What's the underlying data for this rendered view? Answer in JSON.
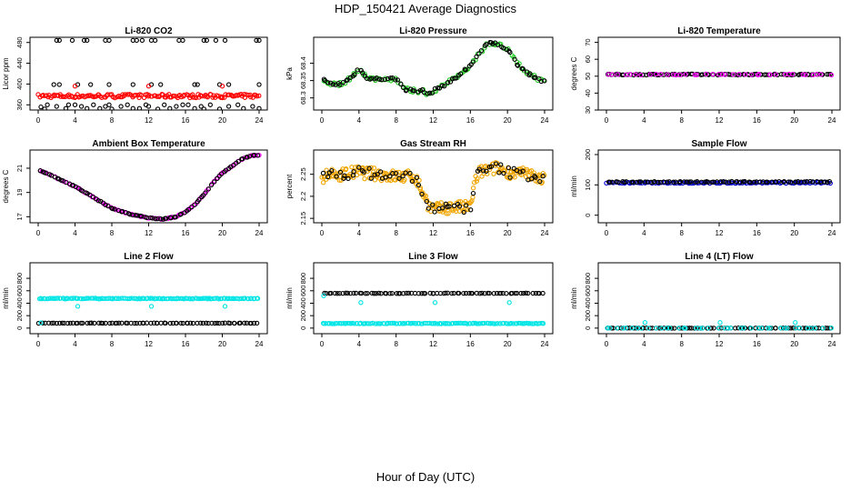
{
  "title": "HDP_150421  Average Diagnostics",
  "xlabel": "Hour of Day (UTC)",
  "colors": {
    "black": "#000000",
    "red": "#ff0000",
    "green": "#22cc22",
    "magenta": "#ff00ff",
    "orange": "#f0a500",
    "blue": "#0000cc",
    "cyan": "#00e5e5"
  },
  "chart_data": [
    {
      "type": "scatter",
      "title": "Li-820 CO2",
      "ylabel": "Licor ppm",
      "xlim": [
        0,
        24
      ],
      "xticks": [
        0,
        4,
        8,
        12,
        16,
        20,
        24
      ],
      "ylim": [
        350,
        490
      ],
      "yticks": [
        360,
        400,
        440,
        480
      ],
      "series": [
        {
          "name": "red",
          "color": "red",
          "style": "band",
          "y": 377,
          "spread": 3.5,
          "n": 150
        },
        {
          "name": "black-top",
          "color": "black",
          "x": [
            2,
            2.3,
            3.7,
            5,
            5.3,
            7.3,
            7.7,
            10.3,
            10.7,
            11.3,
            12.3,
            12.7,
            15.3,
            15.7,
            18,
            18.3,
            19.3,
            20.3,
            23.7,
            24
          ],
          "y": [
            484,
            484,
            484,
            484,
            484,
            484,
            484,
            484,
            484,
            484,
            484,
            484,
            484,
            484,
            484,
            484,
            484,
            484,
            484,
            484
          ]
        },
        {
          "name": "black-mid",
          "color": "black",
          "x": [
            1.7,
            2.3,
            4.3,
            5.7,
            7.7,
            10.3,
            12.3,
            13.3,
            17,
            17.3,
            19.7,
            20.7,
            24
          ],
          "y": [
            399,
            399,
            399,
            399,
            399,
            399,
            399,
            399,
            399,
            399,
            399,
            399,
            399
          ]
        },
        {
          "name": "black-low",
          "color": "black",
          "x": [
            0.3,
            0.7,
            1,
            2,
            3,
            3.3,
            4,
            4.7,
            5.3,
            6,
            6.7,
            7.3,
            7.7,
            8,
            9,
            9.7,
            10.3,
            11,
            11.7,
            12,
            13,
            13.7,
            14.3,
            15,
            15.7,
            16.3,
            17,
            17.7,
            18,
            18.7,
            19.7,
            20.7,
            21.7,
            22.3,
            23.3,
            24
          ],
          "y": [
            356,
            352,
            360,
            357,
            353,
            360,
            360,
            357,
            353,
            360,
            353,
            357,
            360,
            352,
            357,
            360,
            353,
            353,
            360,
            357,
            352,
            360,
            353,
            357,
            360,
            360,
            353,
            357,
            352,
            360,
            352,
            357,
            360,
            353,
            357,
            353
          ]
        },
        {
          "name": "red-high",
          "color": "red",
          "x": [
            4,
            12,
            20
          ],
          "y": [
            396,
            396,
            396
          ]
        }
      ]
    },
    {
      "type": "scatter",
      "title": "Li-820 Pressure",
      "ylabel": "kPa",
      "xlim": [
        0,
        24
      ],
      "xticks": [
        0,
        4,
        8,
        12,
        16,
        20,
        24
      ],
      "ylim": [
        68.265,
        68.475
      ],
      "yticks": [
        68.3,
        68.35,
        68.4
      ],
      "series": [
        {
          "name": "green",
          "color": "green",
          "style": "trace",
          "x": [
            0,
            1,
            2,
            3,
            4,
            5,
            6,
            7,
            8,
            9,
            10,
            11,
            11.5,
            12,
            13,
            14,
            15,
            16,
            17,
            18,
            19,
            20,
            21,
            22,
            23,
            24
          ],
          "y": [
            68.355,
            68.34,
            68.34,
            68.355,
            68.385,
            68.355,
            68.355,
            68.355,
            68.355,
            68.325,
            68.32,
            68.32,
            68.31,
            68.32,
            68.335,
            68.35,
            68.37,
            68.395,
            68.43,
            68.46,
            68.455,
            68.44,
            68.4,
            68.375,
            68.36,
            68.345
          ],
          "spread": 0.006
        },
        {
          "name": "black",
          "color": "black",
          "style": "trace",
          "x": [
            0,
            1,
            2,
            3,
            4,
            5,
            6,
            7,
            8,
            9,
            10,
            11,
            11.5,
            12,
            13,
            14,
            15,
            16,
            17,
            18,
            19,
            20,
            21,
            22,
            23,
            24
          ],
          "y": [
            68.355,
            68.34,
            68.34,
            68.355,
            68.385,
            68.355,
            68.355,
            68.355,
            68.355,
            68.325,
            68.32,
            68.32,
            68.31,
            68.32,
            68.335,
            68.35,
            68.37,
            68.395,
            68.43,
            68.46,
            68.455,
            68.44,
            68.4,
            68.375,
            68.36,
            68.345
          ],
          "spread": 0.004
        }
      ]
    },
    {
      "type": "scatter",
      "title": "Li-820 Temperature",
      "ylabel": "degrees C",
      "xlim": [
        0,
        24
      ],
      "xticks": [
        0,
        4,
        8,
        12,
        16,
        20,
        24
      ],
      "ylim": [
        30,
        73
      ],
      "yticks": [
        30,
        40,
        50,
        60,
        70
      ],
      "series": [
        {
          "name": "black",
          "color": "black",
          "style": "band",
          "y": 51,
          "spread": 0.3,
          "n": 95
        },
        {
          "name": "magenta",
          "color": "magenta",
          "style": "band",
          "y": 51,
          "spread": 0.3,
          "n": 40
        }
      ]
    },
    {
      "type": "scatter",
      "title": "Ambient Box Temperature",
      "ylabel": "degrees C",
      "xlim": [
        0,
        24
      ],
      "xticks": [
        0,
        4,
        8,
        12,
        16,
        20,
        24
      ],
      "ylim": [
        16.5,
        22.5
      ],
      "yticks": [
        17,
        19,
        21
      ],
      "series": [
        {
          "name": "magenta",
          "color": "magenta",
          "style": "trace",
          "x": [
            0,
            2,
            4,
            6,
            8,
            10,
            12,
            13.5,
            15,
            16,
            17,
            18,
            19,
            20,
            22,
            23,
            24
          ],
          "y": [
            20.9,
            20.2,
            19.5,
            18.6,
            17.7,
            17.2,
            16.9,
            16.8,
            17,
            17.4,
            18,
            18.8,
            19.8,
            20.6,
            21.7,
            22.0,
            22.1
          ],
          "spread": 0.04
        },
        {
          "name": "black",
          "color": "black",
          "style": "trace",
          "x": [
            0,
            2,
            4,
            6,
            8,
            10,
            12,
            13.5,
            15,
            16,
            17,
            18,
            19,
            20,
            22,
            23,
            24
          ],
          "y": [
            20.9,
            20.2,
            19.5,
            18.6,
            17.7,
            17.2,
            16.9,
            16.8,
            17,
            17.4,
            18,
            18.8,
            19.8,
            20.6,
            21.7,
            22.0,
            22.1
          ],
          "spread": 0.03
        }
      ]
    },
    {
      "type": "scatter",
      "title": "Gas Stream RH",
      "ylabel": "percent",
      "xlim": [
        0,
        24
      ],
      "xticks": [
        0,
        4,
        8,
        12,
        16,
        20,
        24
      ],
      "ylim": [
        2.14,
        2.305
      ],
      "yticks": [
        2.15,
        2.2,
        2.25
      ],
      "series": [
        {
          "name": "orange",
          "color": "orange",
          "style": "trace",
          "x": [
            0,
            2,
            4,
            6,
            8,
            10,
            10.5,
            11.5,
            12,
            14,
            16,
            16.5,
            17,
            18,
            19,
            20,
            22,
            24
          ],
          "y": [
            2.245,
            2.25,
            2.255,
            2.25,
            2.245,
            2.245,
            2.225,
            2.18,
            2.17,
            2.175,
            2.175,
            2.235,
            2.255,
            2.26,
            2.265,
            2.255,
            2.25,
            2.24
          ],
          "spread": 0.014,
          "n": 240
        },
        {
          "name": "black",
          "color": "black",
          "style": "trace",
          "x": [
            0,
            2,
            4,
            6,
            8,
            10,
            10.5,
            11.5,
            12,
            14,
            16,
            16.5,
            17,
            18,
            19,
            20,
            22,
            24
          ],
          "y": [
            2.245,
            2.25,
            2.255,
            2.25,
            2.245,
            2.245,
            2.225,
            2.18,
            2.17,
            2.175,
            2.175,
            2.235,
            2.255,
            2.26,
            2.265,
            2.255,
            2.25,
            2.24
          ],
          "spread": 0.012,
          "n": 70
        }
      ]
    },
    {
      "type": "scatter",
      "title": "Sample Flow",
      "ylabel": "ml/min",
      "xlim": [
        0,
        24
      ],
      "xticks": [
        0,
        4,
        8,
        12,
        16,
        20,
        24
      ],
      "ylim": [
        -25,
        215
      ],
      "yticks": [
        0,
        100,
        200
      ],
      "series": [
        {
          "name": "blue",
          "color": "blue",
          "style": "band",
          "y": 107,
          "spread": 2,
          "n": 110
        },
        {
          "name": "black",
          "color": "black",
          "style": "band",
          "y": 110,
          "spread": 1.5,
          "n": 80
        }
      ]
    },
    {
      "type": "scatter",
      "title": "Line 2 Flow",
      "ylabel": "ml/min",
      "xlim": [
        0,
        24
      ],
      "xticks": [
        0,
        4,
        8,
        12,
        16,
        20,
        24
      ],
      "ylim": [
        -90,
        1050
      ],
      "yticks": [
        0,
        200,
        400,
        600,
        800
      ],
      "series": [
        {
          "name": "cyan-band",
          "color": "cyan",
          "style": "band",
          "y": 475,
          "spread": 6,
          "n": 140
        },
        {
          "name": "black-band",
          "color": "black",
          "style": "band",
          "y": 80,
          "spread": 2,
          "n": 80
        },
        {
          "name": "cyan-low",
          "color": "cyan",
          "x": [
            0.3,
            4.3,
            12.3,
            20.3
          ],
          "y": [
            85,
            350,
            350,
            350
          ]
        }
      ]
    },
    {
      "type": "scatter",
      "title": "Line 3 Flow",
      "ylabel": "ml/min",
      "xlim": [
        0,
        24
      ],
      "xticks": [
        0,
        4,
        8,
        12,
        16,
        20,
        24
      ],
      "ylim": [
        -90,
        1050
      ],
      "yticks": [
        0,
        200,
        400,
        600,
        800
      ],
      "series": [
        {
          "name": "cyan-band",
          "color": "cyan",
          "style": "band",
          "y": 75,
          "spread": 5,
          "n": 140
        },
        {
          "name": "black-band",
          "color": "black",
          "style": "band",
          "y": 560,
          "spread": 3,
          "n": 80
        },
        {
          "name": "cyan-mid",
          "color": "cyan",
          "x": [
            0.2,
            4.2,
            12.2,
            20.2
          ],
          "y": [
            520,
            410,
            410,
            410
          ]
        }
      ]
    },
    {
      "type": "scatter",
      "title": "Line 4 (LT) Flow",
      "ylabel": "ml/min",
      "xlim": [
        0,
        24
      ],
      "xticks": [
        0,
        4,
        8,
        12,
        16,
        20,
        24
      ],
      "ylim": [
        -90,
        1050
      ],
      "yticks": [
        0,
        200,
        400,
        600,
        800
      ],
      "series": [
        {
          "name": "black-band",
          "color": "black",
          "style": "band",
          "y": 0,
          "spread": 2,
          "n": 80
        },
        {
          "name": "cyan-band",
          "color": "cyan",
          "style": "band",
          "y": 0,
          "spread": 2,
          "n": 40
        },
        {
          "name": "cyan-high",
          "color": "cyan",
          "x": [
            0.1,
            4.1,
            12.1,
            20.1
          ],
          "y": [
            0,
            90,
            90,
            90
          ]
        }
      ]
    }
  ]
}
